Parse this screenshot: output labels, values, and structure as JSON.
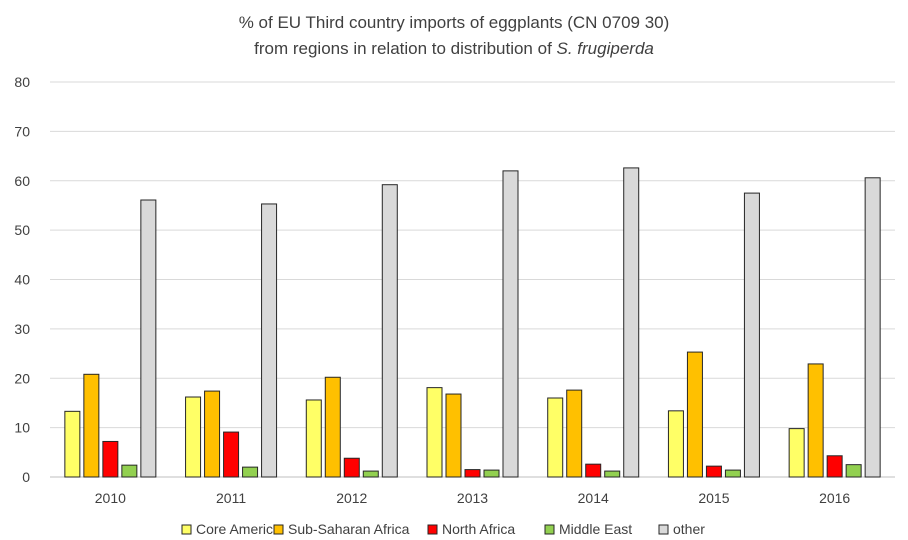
{
  "chart_data": {
    "type": "bar",
    "title_line1": "% of EU Third country imports of  eggplants (CN 0709 30)",
    "title_line2_prefix": "from regions in relation  to distribution of ",
    "title_line2_italic": "S. frugiperda",
    "categories": [
      "2010",
      "2011",
      "2012",
      "2013",
      "2014",
      "2015",
      "2016"
    ],
    "ylim": [
      0,
      80
    ],
    "yticks": [
      "0",
      "10",
      "20",
      "30",
      "40",
      "50",
      "60",
      "70",
      "80"
    ],
    "grid": true,
    "legend_position": "bottom",
    "series": [
      {
        "name": "Core America",
        "color": "#ffff66",
        "values": [
          13.3,
          16.2,
          15.6,
          18.1,
          16.0,
          13.4,
          9.8
        ]
      },
      {
        "name": "Sub-Saharan Africa",
        "color": "#ffc000",
        "values": [
          20.8,
          17.4,
          20.2,
          16.8,
          17.6,
          25.3,
          22.9
        ]
      },
      {
        "name": "North Africa",
        "color": "#ff0000",
        "values": [
          7.2,
          9.1,
          3.8,
          1.5,
          2.6,
          2.2,
          4.3
        ]
      },
      {
        "name": "Middle East",
        "color": "#92d050",
        "values": [
          2.4,
          2.0,
          1.2,
          1.4,
          1.2,
          1.4,
          2.5
        ]
      },
      {
        "name": "other",
        "color": "#d9d9d9",
        "values": [
          56.1,
          55.3,
          59.2,
          62.0,
          62.6,
          57.5,
          60.6
        ]
      }
    ]
  }
}
